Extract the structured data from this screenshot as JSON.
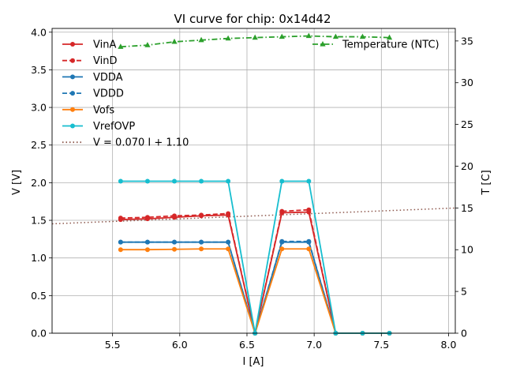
{
  "chart_data": {
    "type": "line",
    "title": "VI curve for chip: 0x14d42",
    "xlabel": "I [A]",
    "ylabel": "V [V]",
    "y2label": "T [C]",
    "xlim": [
      5.05,
      8.05
    ],
    "ylim": [
      0,
      4.05
    ],
    "y2lim": [
      0,
      36.5
    ],
    "xticks": [
      "5.5",
      "6.0",
      "6.5",
      "7.0",
      "7.5",
      "8.0"
    ],
    "yticks": [
      "0.0",
      "0.5",
      "1.0",
      "1.5",
      "2.0",
      "2.5",
      "3.0",
      "3.5",
      "4.0"
    ],
    "y2ticks": [
      "0",
      "5",
      "10",
      "15",
      "20",
      "25",
      "30",
      "35"
    ],
    "grid": true,
    "x": [
      5.56,
      5.76,
      5.96,
      6.16,
      6.36,
      6.56,
      6.76,
      6.96,
      7.16,
      7.36,
      7.56
    ],
    "series": [
      {
        "name": "VinA",
        "color": "#d62728",
        "style": "solid",
        "marker": "o",
        "values": [
          1.51,
          1.52,
          1.54,
          1.56,
          1.57,
          0.0,
          1.6,
          1.61,
          0.0,
          0.0,
          0.0
        ]
      },
      {
        "name": "VinD",
        "color": "#d62728",
        "style": "dashed",
        "marker": "o",
        "values": [
          1.53,
          1.54,
          1.56,
          1.57,
          1.59,
          0.0,
          1.62,
          1.64,
          0.0,
          0.0,
          0.0
        ]
      },
      {
        "name": "VDDA",
        "color": "#1f77b4",
        "style": "solid",
        "marker": "o",
        "values": [
          1.21,
          1.21,
          1.21,
          1.21,
          1.21,
          0.0,
          1.21,
          1.21,
          0.0,
          0.0,
          0.0
        ]
      },
      {
        "name": "VDDD",
        "color": "#1f77b4",
        "style": "dashed",
        "marker": "o",
        "values": [
          1.21,
          1.21,
          1.21,
          1.21,
          1.21,
          0.0,
          1.22,
          1.22,
          0.0,
          0.0,
          0.0
        ]
      },
      {
        "name": "Vofs",
        "color": "#ff7f0e",
        "style": "solid",
        "marker": "o",
        "values": [
          1.11,
          1.11,
          1.115,
          1.12,
          1.12,
          0.0,
          1.12,
          1.12,
          0.0,
          0.0,
          0.0
        ]
      },
      {
        "name": "VrefOVP",
        "color": "#17becf",
        "style": "solid",
        "marker": "o",
        "values": [
          2.02,
          2.02,
          2.02,
          2.02,
          2.02,
          0.0,
          2.02,
          2.02,
          0.0,
          0.0,
          0.0
        ]
      }
    ],
    "fit": {
      "name": "V = 0.070 I + 1.10",
      "color": "#8c564b",
      "style": "dotted",
      "slope": 0.07,
      "intercept": 1.1
    },
    "temperature": {
      "name": "Temperature (NTC)",
      "color": "#2ca02c",
      "style": "dashdot",
      "marker": "^",
      "axis": "right",
      "values": [
        34.3,
        34.5,
        34.9,
        35.1,
        35.3,
        35.4,
        35.5,
        35.6,
        35.5,
        35.5,
        35.4
      ]
    }
  }
}
